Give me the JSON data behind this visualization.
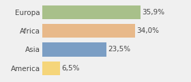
{
  "categories": [
    "America",
    "Asia",
    "Africa",
    "Europa"
  ],
  "values": [
    6.5,
    23.5,
    34.0,
    35.9
  ],
  "labels": [
    "6,5%",
    "23,5%",
    "34,0%",
    "35,9%"
  ],
  "bar_colors": [
    "#f5d57a",
    "#7b9ec4",
    "#e8b98a",
    "#a8c08a"
  ],
  "background_color": "#f0f0f0",
  "xlim": [
    0,
    46
  ],
  "label_fontsize": 7.5,
  "tick_fontsize": 7.5,
  "bar_height": 0.75
}
